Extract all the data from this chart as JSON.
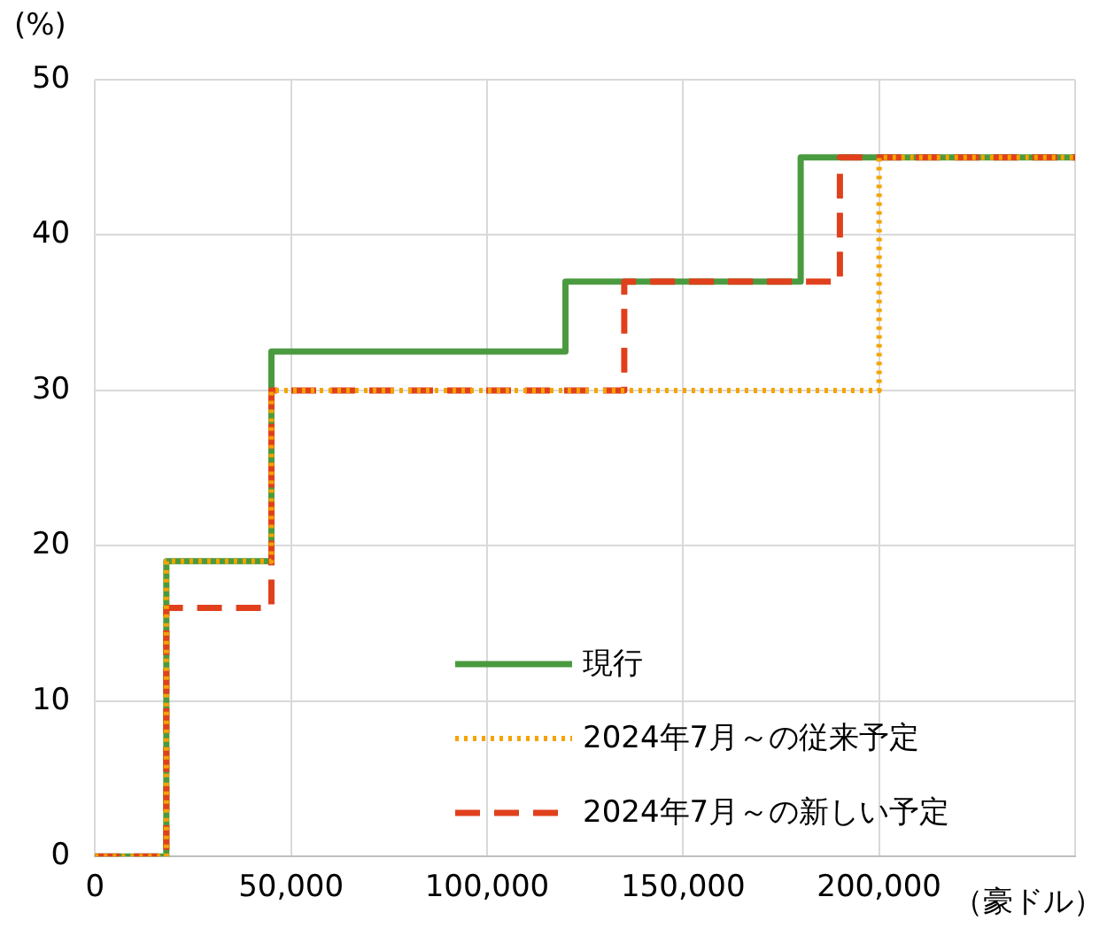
{
  "chart_data": {
    "type": "step",
    "ylabel": "(%)",
    "xlabel": "（豪ドル）",
    "xlim": [
      0,
      250000
    ],
    "xticks": [
      0,
      {
        "value": 50000,
        "label": "50,000"
      },
      {
        "value": 100000,
        "label": "100,000"
      },
      {
        "value": 150000,
        "label": "150,000"
      },
      {
        "value": 200000,
        "label": "200,000"
      },
      {
        "value": 250000,
        "label": null
      }
    ],
    "ylim": [
      0,
      50
    ],
    "yticks": [
      0,
      10,
      20,
      30,
      40,
      50
    ],
    "grid": true,
    "legend": "bottom right",
    "marker": "none",
    "series": [
      {
        "name": "現行",
        "color": "#4a9a3f",
        "line_style": "solid",
        "x": [
          0,
          18200,
          45000,
          120000,
          180000,
          250000
        ],
        "values": [
          0,
          19,
          32.5,
          37,
          45,
          45
        ]
      },
      {
        "name": "2024年7月～の従来予定",
        "color": "#f5a300",
        "line_style": "dotted",
        "x": [
          0,
          18200,
          45000,
          200000,
          250000
        ],
        "values": [
          0,
          19,
          30,
          45,
          45
        ]
      },
      {
        "name": "2024年7月～の新しい予定",
        "color": "#e0401c",
        "line_style": "dashed",
        "x": [
          0,
          18200,
          45000,
          135000,
          190000,
          250000
        ],
        "values": [
          0,
          16,
          30,
          37,
          45,
          45
        ]
      }
    ]
  }
}
